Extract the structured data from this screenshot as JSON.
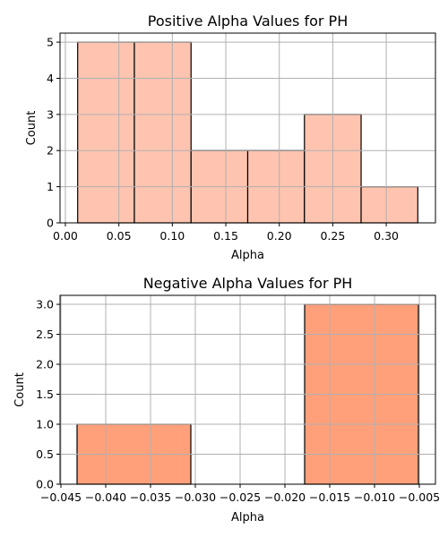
{
  "chart_data": [
    {
      "type": "bar",
      "title": "Positive Alpha Values for PH",
      "xlabel": "Alpha",
      "ylabel": "Count",
      "bin_edges": [
        0.0115,
        0.0645,
        0.1175,
        0.1705,
        0.2235,
        0.2765,
        0.3295
      ],
      "values": [
        5,
        5,
        2,
        2,
        3,
        1
      ],
      "xlim": [
        -0.005,
        0.346
      ],
      "ylim": [
        0,
        5.25
      ],
      "xticks": [
        0.0,
        0.05,
        0.1,
        0.15,
        0.2,
        0.25,
        0.3
      ],
      "xtick_labels": [
        "0.00",
        "0.05",
        "0.10",
        "0.15",
        "0.20",
        "0.25",
        "0.30"
      ],
      "yticks": [
        0,
        1,
        2,
        3,
        4,
        5
      ],
      "ytick_labels": [
        "0",
        "1",
        "2",
        "3",
        "4",
        "5"
      ],
      "grid": true,
      "bar_color": "#ffc4b0"
    },
    {
      "type": "bar",
      "title": "Negative Alpha Values for PH",
      "xlabel": "Alpha",
      "ylabel": "Count",
      "bin_edges": [
        -0.0432,
        -0.0305,
        -0.0178,
        -0.0051
      ],
      "values": [
        1,
        0,
        3
      ],
      "xlim": [
        -0.0451,
        -0.0032
      ],
      "ylim": [
        0,
        3.15
      ],
      "xticks": [
        -0.045,
        -0.04,
        -0.035,
        -0.03,
        -0.025,
        -0.02,
        -0.015,
        -0.01,
        -0.005
      ],
      "xtick_labels": [
        "−0.045",
        "−0.040",
        "−0.035",
        "−0.030",
        "−0.025",
        "−0.020",
        "−0.015",
        "−0.010",
        "−0.005"
      ],
      "yticks": [
        0,
        0.5,
        1,
        1.5,
        2,
        2.5,
        3
      ],
      "ytick_labels": [
        "0.0",
        "0.5",
        "1.0",
        "1.5",
        "2.0",
        "2.5",
        "3.0"
      ],
      "grid": true,
      "bar_color": "#ffa07a"
    }
  ]
}
